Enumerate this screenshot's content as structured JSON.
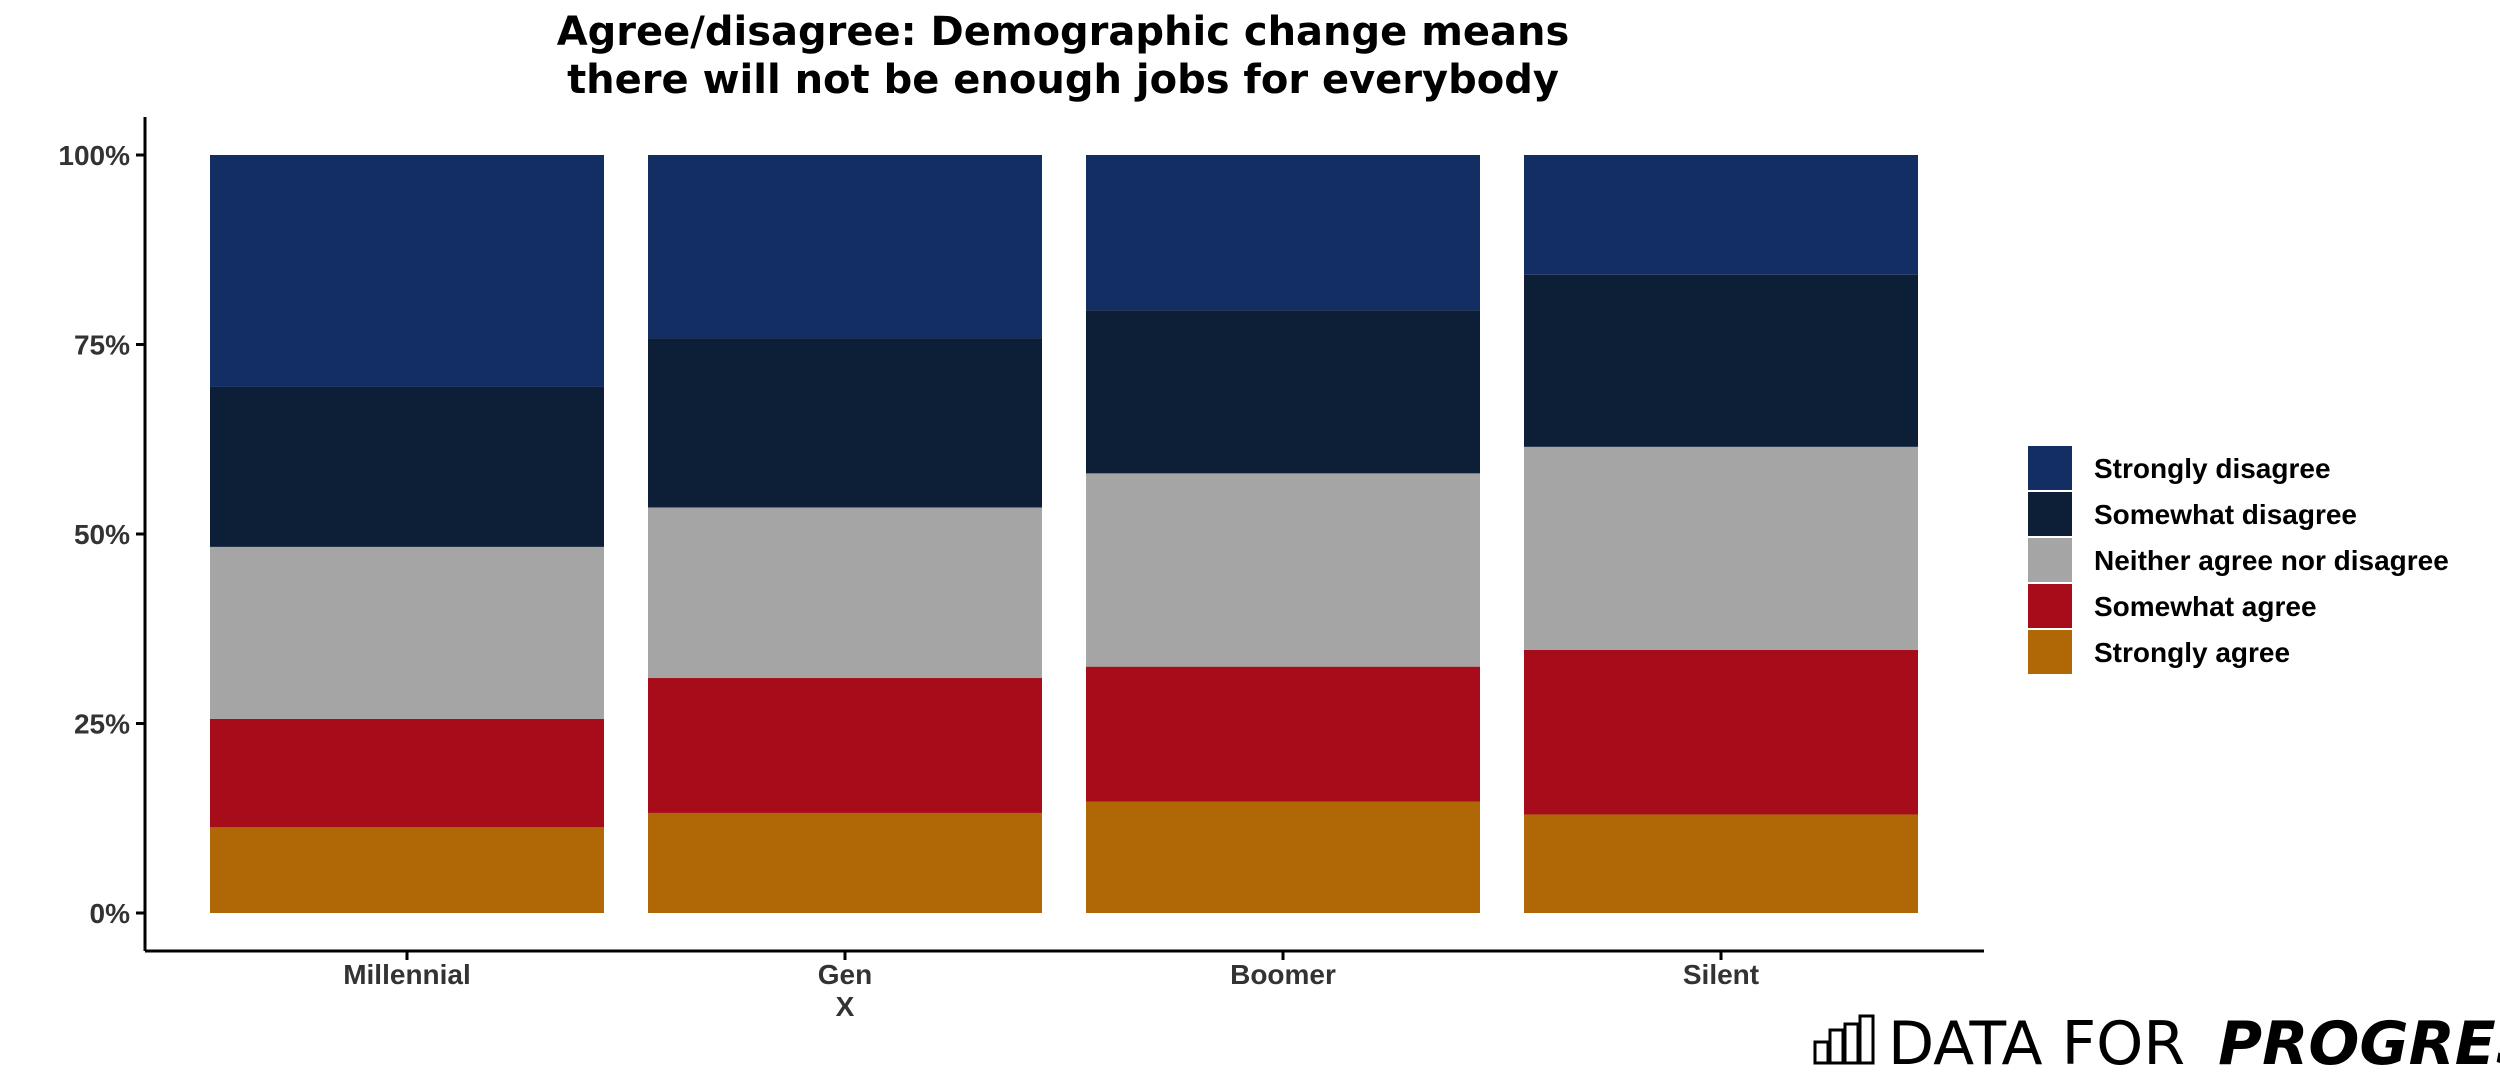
{
  "chart_data": {
    "type": "bar",
    "stacked": true,
    "title_lines": [
      "Agree/disagree: Demographic change means",
      "there will not be enough jobs for everybody"
    ],
    "xlabel": "",
    "ylabel": "",
    "ylim": [
      0,
      100
    ],
    "y_ticks": [
      {
        "value": 0,
        "label": "0%"
      },
      {
        "value": 25,
        "label": "25%"
      },
      {
        "value": 50,
        "label": "50%"
      },
      {
        "value": 75,
        "label": "75%"
      },
      {
        "value": 100,
        "label": "100%"
      }
    ],
    "categories": [
      {
        "lines": [
          "Millennial"
        ]
      },
      {
        "lines": [
          "Gen",
          "X"
        ]
      },
      {
        "lines": [
          "Boomer"
        ]
      },
      {
        "lines": [
          "Silent"
        ]
      }
    ],
    "series": [
      {
        "name": "Strongly agree",
        "color": "#b06705",
        "values": [
          11.3,
          13.2,
          14.7,
          13.0
        ]
      },
      {
        "name": "Somewhat agree",
        "color": "#a60c19",
        "values": [
          14.3,
          17.8,
          17.8,
          21.7
        ]
      },
      {
        "name": "Neither agree nor disagree",
        "color": "#a5a5a5",
        "values": [
          22.7,
          22.5,
          25.5,
          26.8
        ]
      },
      {
        "name": "Somewhat disagree",
        "color": "#0d1e37",
        "values": [
          21.1,
          22.3,
          21.5,
          22.7
        ]
      },
      {
        "name": "Strongly disagree",
        "color": "#132e62",
        "values": [
          30.6,
          24.2,
          20.5,
          15.8
        ]
      }
    ],
    "legend_order": [
      "Strongly disagree",
      "Somewhat disagree",
      "Neither agree nor disagree",
      "Somewhat agree",
      "Strongly agree"
    ],
    "legend_position": "right",
    "grid": false
  },
  "logo": {
    "text_light": "DATA FOR",
    "text_bold": "PROGRESS"
  }
}
